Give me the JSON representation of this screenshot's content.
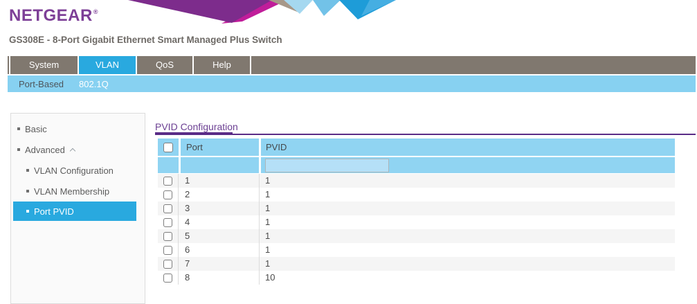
{
  "brand": {
    "logo": "NETGEAR",
    "registered": "®"
  },
  "header": {
    "device_title": "GS308E - 8-Port Gigabit Ethernet Smart Managed Plus Switch"
  },
  "nav": {
    "tabs": [
      {
        "label": "System",
        "active": false
      },
      {
        "label": "VLAN",
        "active": true
      },
      {
        "label": "QoS",
        "active": false
      },
      {
        "label": "Help",
        "active": false
      }
    ]
  },
  "subnav": {
    "items": [
      {
        "label": "Port-Based",
        "active": false
      },
      {
        "label": "802.1Q",
        "active": true
      }
    ]
  },
  "sidebar": {
    "items": [
      {
        "label": "Basic",
        "level": 1,
        "selected": false,
        "expanded": null
      },
      {
        "label": "Advanced",
        "level": 1,
        "selected": false,
        "expanded": true
      },
      {
        "label": "VLAN Configuration",
        "level": 2,
        "selected": false,
        "expanded": null
      },
      {
        "label": "VLAN Membership",
        "level": 2,
        "selected": false,
        "expanded": null
      },
      {
        "label": "Port PVID",
        "level": 2,
        "selected": true,
        "expanded": null
      }
    ]
  },
  "main": {
    "title": "PVID Configuration",
    "table": {
      "select_all_checked": false,
      "columns": [
        "Port",
        "PVID"
      ],
      "filter": {
        "pvid_value": ""
      },
      "rows": [
        {
          "port": "1",
          "pvid": "1",
          "checked": false
        },
        {
          "port": "2",
          "pvid": "1",
          "checked": false
        },
        {
          "port": "3",
          "pvid": "1",
          "checked": false
        },
        {
          "port": "4",
          "pvid": "1",
          "checked": false
        },
        {
          "port": "5",
          "pvid": "1",
          "checked": false
        },
        {
          "port": "6",
          "pvid": "1",
          "checked": false
        },
        {
          "port": "7",
          "pvid": "1",
          "checked": false
        },
        {
          "port": "8",
          "pvid": "10",
          "checked": false
        }
      ]
    }
  },
  "colors": {
    "brand_purple": "#7d3f97",
    "title_purple": "#6b3f92",
    "rule_purple": "#5a2c87",
    "nav_gray": "#80786f",
    "active_blue": "#29a9df",
    "subnav_blue": "#87d1f1",
    "table_header_blue": "#90d4f2",
    "input_blue": "#b5e0f7",
    "row_alt_gray": "#f5f5f5",
    "banner": [
      "#7d2c8c",
      "#c01d9a",
      "#a79889",
      "#a5d8f0",
      "#72c2e8",
      "#1e9cd8",
      "#45aee2"
    ]
  }
}
